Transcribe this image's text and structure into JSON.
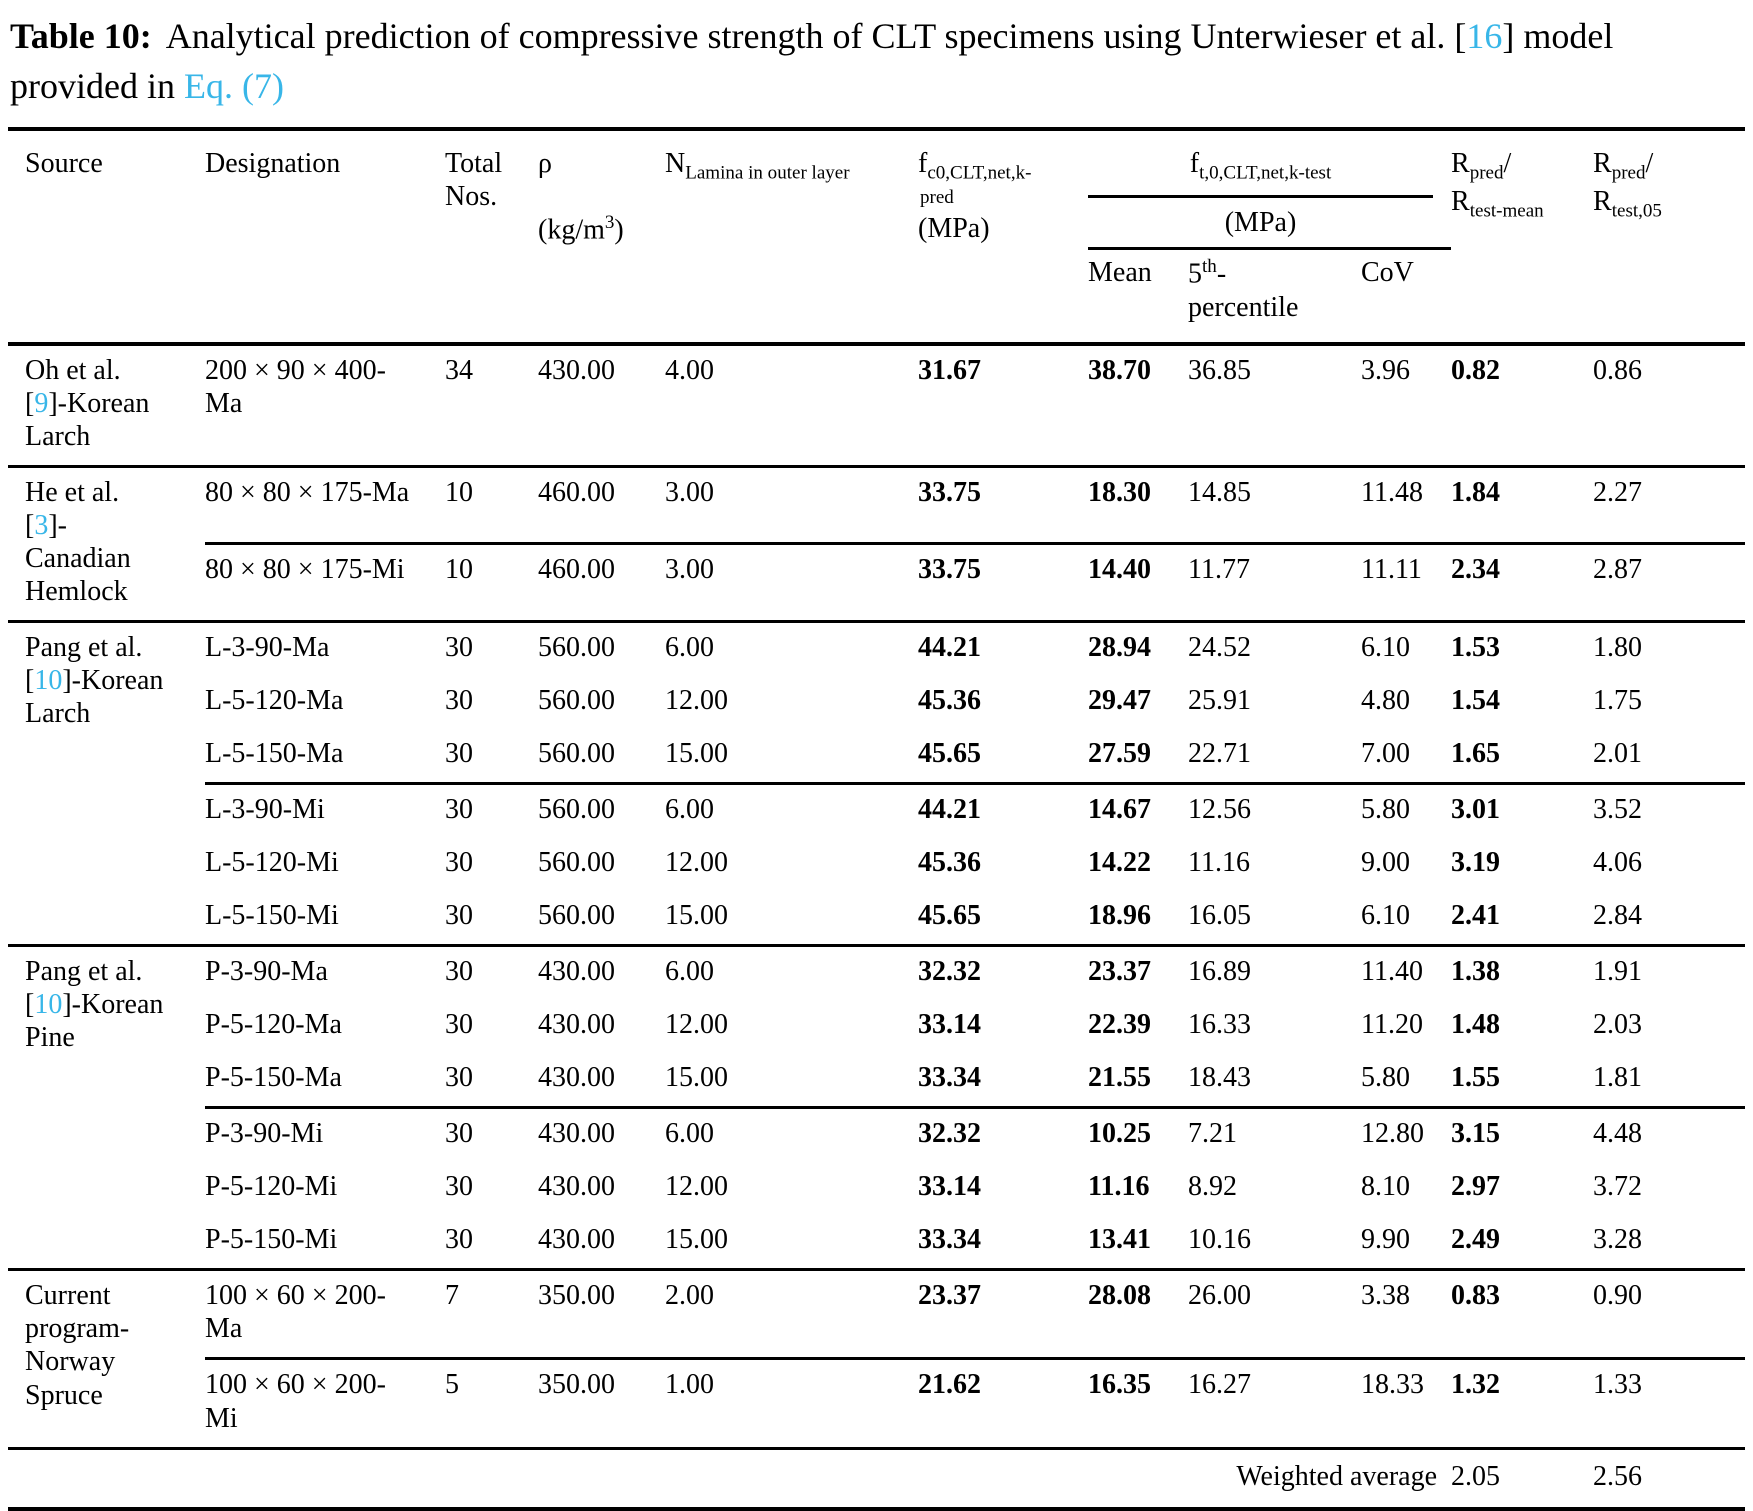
{
  "colors": {
    "accent": "#38b6e8",
    "text": "#000000",
    "background": "#ffffff"
  },
  "title": {
    "label": "Table 10:",
    "text_a": "Analytical prediction of compressive strength of CLT specimens using Unterwieser et al. [",
    "ref_a": "16",
    "text_b": "] model provided in ",
    "ref_b": "Eq. (7)"
  },
  "header": {
    "source": "Source",
    "designation": "Designation",
    "total_line1": "Total Nos.",
    "rho_symbol": "ρ",
    "rho_unit_pre": "(kg/m",
    "rho_unit_sup": "3",
    "rho_unit_post": ")",
    "n_base": "N",
    "n_sub": "Lamina in outer layer",
    "fc0_base": "f",
    "fc0_sub": "c0,CLT,net,k-",
    "fc0_sub2": "pred",
    "fc0_unit": "(MPa)",
    "ft_base": "f",
    "ft_sub": "t,0,CLT,net,k-test",
    "ft_unit": "(MPa)",
    "mean": "Mean",
    "p5_base": "5",
    "p5_sup": "th",
    "p5_dash": "-",
    "p5_line2": "percentile",
    "cov": "CoV",
    "r1_base": "R",
    "r1_sub": "pred",
    "r1_slash": "/",
    "r1_base2": "R",
    "r1_sub2": "test-mean",
    "r2_base": "R",
    "r2_sub": "pred",
    "r2_slash": "/",
    "r2_base2": "R",
    "r2_sub2": "test,05"
  },
  "groups": [
    {
      "source": {
        "pre": "Oh et al. [",
        "ref": "9",
        "post": "]-Korean Larch"
      },
      "rows": [
        {
          "designation": "200 × 90 × 400-Ma",
          "nos": "34",
          "rho": "430.00",
          "n": "4.00",
          "fc0": "31.67",
          "mean": "38.70",
          "p5": "36.85",
          "cov": "3.96",
          "r1": "0.82",
          "r2": "0.86"
        }
      ]
    },
    {
      "source": {
        "pre": "He et al. [",
        "ref": "3",
        "post": "]-Canadian Hemlock"
      },
      "rows": [
        {
          "designation": "80 × 80 × 175-Ma",
          "nos": "10",
          "rho": "460.00",
          "n": "3.00",
          "fc0": "33.75",
          "mean": "18.30",
          "p5": "14.85",
          "cov": "11.48",
          "r1": "1.84",
          "r2": "2.27"
        },
        {
          "designation": "80 × 80 × 175-Mi",
          "nos": "10",
          "rho": "460.00",
          "n": "3.00",
          "fc0": "33.75",
          "mean": "14.40",
          "p5": "11.77",
          "cov": "11.11",
          "r1": "2.34",
          "r2": "2.87"
        }
      ]
    },
    {
      "source": {
        "pre": "Pang et al. [",
        "ref": "10",
        "post": "]-Korean Larch"
      },
      "rows": [
        {
          "designation": "L-3-90-Ma",
          "nos": "30",
          "rho": "560.00",
          "n": "6.00",
          "fc0": "44.21",
          "mean": "28.94",
          "p5": "24.52",
          "cov": "6.10",
          "r1": "1.53",
          "r2": "1.80"
        },
        {
          "designation": "L-5-120-Ma",
          "nos": "30",
          "rho": "560.00",
          "n": "12.00",
          "fc0": "45.36",
          "mean": "29.47",
          "p5": "25.91",
          "cov": "4.80",
          "r1": "1.54",
          "r2": "1.75"
        },
        {
          "designation": "L-5-150-Ma",
          "nos": "30",
          "rho": "560.00",
          "n": "15.00",
          "fc0": "45.65",
          "mean": "27.59",
          "p5": "22.71",
          "cov": "7.00",
          "r1": "1.65",
          "r2": "2.01"
        },
        {
          "designation": "L-3-90-Mi",
          "nos": "30",
          "rho": "560.00",
          "n": "6.00",
          "fc0": "44.21",
          "mean": "14.67",
          "p5": "12.56",
          "cov": "5.80",
          "r1": "3.01",
          "r2": "3.52"
        },
        {
          "designation": "L-5-120-Mi",
          "nos": "30",
          "rho": "560.00",
          "n": "12.00",
          "fc0": "45.36",
          "mean": "14.22",
          "p5": "11.16",
          "cov": "9.00",
          "r1": "3.19",
          "r2": "4.06"
        },
        {
          "designation": "L-5-150-Mi",
          "nos": "30",
          "rho": "560.00",
          "n": "15.00",
          "fc0": "45.65",
          "mean": "18.96",
          "p5": "16.05",
          "cov": "6.10",
          "r1": "2.41",
          "r2": "2.84"
        }
      ]
    },
    {
      "source": {
        "pre": "Pang et al. [",
        "ref": "10",
        "post": "]-Korean Pine"
      },
      "rows": [
        {
          "designation": "P-3-90-Ma",
          "nos": "30",
          "rho": "430.00",
          "n": "6.00",
          "fc0": "32.32",
          "mean": "23.37",
          "p5": "16.89",
          "cov": "11.40",
          "r1": "1.38",
          "r2": "1.91"
        },
        {
          "designation": "P-5-120-Ma",
          "nos": "30",
          "rho": "430.00",
          "n": "12.00",
          "fc0": "33.14",
          "mean": "22.39",
          "p5": "16.33",
          "cov": "11.20",
          "r1": "1.48",
          "r2": "2.03"
        },
        {
          "designation": "P-5-150-Ma",
          "nos": "30",
          "rho": "430.00",
          "n": "15.00",
          "fc0": "33.34",
          "mean": "21.55",
          "p5": "18.43",
          "cov": "5.80",
          "r1": "1.55",
          "r2": "1.81"
        },
        {
          "designation": "P-3-90-Mi",
          "nos": "30",
          "rho": "430.00",
          "n": "6.00",
          "fc0": "32.32",
          "mean": "10.25",
          "p5": "7.21",
          "cov": "12.80",
          "r1": "3.15",
          "r2": "4.48"
        },
        {
          "designation": "P-5-120-Mi",
          "nos": "30",
          "rho": "430.00",
          "n": "12.00",
          "fc0": "33.14",
          "mean": "11.16",
          "p5": "8.92",
          "cov": "8.10",
          "r1": "2.97",
          "r2": "3.72"
        },
        {
          "designation": "P-5-150-Mi",
          "nos": "30",
          "rho": "430.00",
          "n": "15.00",
          "fc0": "33.34",
          "mean": "13.41",
          "p5": "10.16",
          "cov": "9.90",
          "r1": "2.49",
          "r2": "3.28"
        }
      ]
    },
    {
      "source": {
        "pre": "Current program-Norway Spruce",
        "ref": "",
        "post": ""
      },
      "rows": [
        {
          "designation": "100 × 60 × 200-Ma",
          "nos": "7",
          "rho": "350.00",
          "n": "2.00",
          "fc0": "23.37",
          "mean": "28.08",
          "p5": "26.00",
          "cov": "3.38",
          "r1": "0.83",
          "r2": "0.90"
        },
        {
          "designation": "100 × 60 × 200-Mi",
          "nos": "5",
          "rho": "350.00",
          "n": "1.00",
          "fc0": "21.62",
          "mean": "16.35",
          "p5": "16.27",
          "cov": "18.33",
          "r1": "1.32",
          "r2": "1.33"
        }
      ]
    }
  ],
  "footer": {
    "label": "Weighted average",
    "r1": "2.05",
    "r2": "2.56"
  }
}
